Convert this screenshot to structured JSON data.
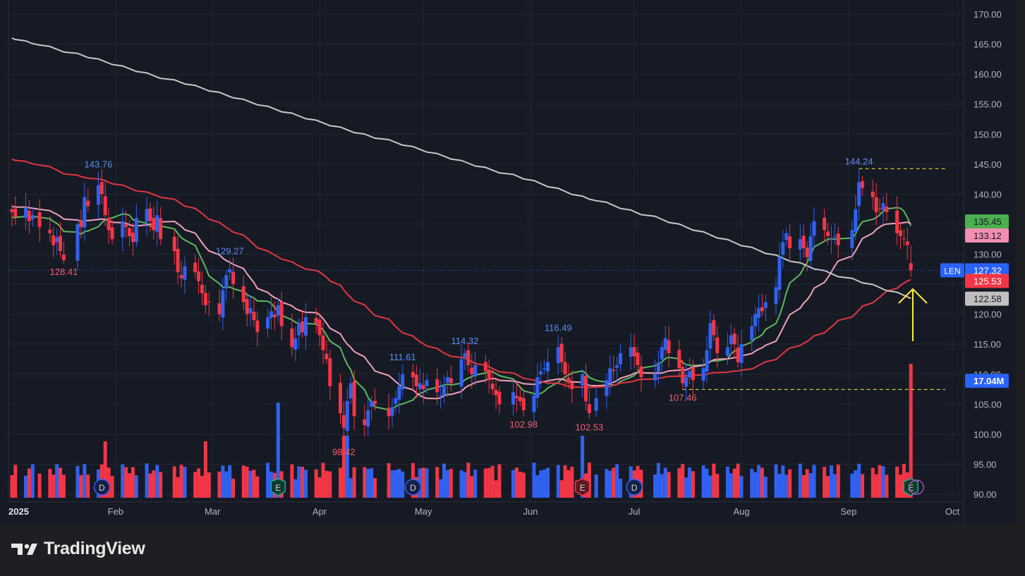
{
  "brand": {
    "name": "TradingView",
    "icon": "tradingview-logo-icon"
  },
  "colors": {
    "background": "#161a25",
    "grid": "#232733",
    "axis_text": "#b2b5be",
    "up": "#3061f0",
    "down": "#f23645",
    "sma_green": "#5cb85c",
    "sma_pink": "#f3a1bb",
    "sma_red": "#e4363f",
    "sma_gray": "#c7c7c7",
    "annotation": "#ffeb3b"
  },
  "chart_data": {
    "type": "candlestick",
    "symbol": "LEN",
    "x_ticks": [
      "2025",
      "Feb",
      "Mar",
      "Apr",
      "May",
      "Jun",
      "Jul",
      "Aug",
      "Sep",
      "Oct"
    ],
    "y_ticks": [
      "170.00",
      "165.00",
      "160.00",
      "155.00",
      "150.00",
      "145.00",
      "140.00",
      "135.00",
      "130.00",
      "125.00",
      "120.00",
      "115.00",
      "110.00",
      "105.00",
      "100.00",
      "95.00",
      "90.00"
    ],
    "ylim": [
      88.5,
      171.5
    ],
    "candles": [
      {
        "date": "2025-01-02",
        "close": 137.0
      },
      {
        "date": "2025-01-03",
        "close": 136.2
      },
      {
        "date": "2025-01-06",
        "close": 137.8
      },
      {
        "date": "2025-01-07",
        "close": 135.5
      },
      {
        "date": "2025-01-08",
        "close": 136.5
      },
      {
        "date": "2025-01-10",
        "close": 134.5
      },
      {
        "date": "2025-01-13",
        "close": 133.5
      },
      {
        "date": "2025-01-14",
        "close": 131.5
      },
      {
        "date": "2025-01-15",
        "close": 132.8
      },
      {
        "date": "2025-01-16",
        "close": 130.5
      },
      {
        "date": "2025-01-17",
        "close": 129.0
      },
      {
        "date": "2025-01-21",
        "close": 135.0
      },
      {
        "date": "2025-01-22",
        "close": 134.5
      },
      {
        "date": "2025-01-23",
        "close": 139.5
      },
      {
        "date": "2025-01-24",
        "close": 138.0
      },
      {
        "date": "2025-01-27",
        "close": 141.5
      },
      {
        "date": "2025-01-28",
        "close": 140.0
      },
      {
        "date": "2025-01-29",
        "close": 136.5
      },
      {
        "date": "2025-01-30",
        "close": 134.0
      },
      {
        "date": "2025-01-31",
        "close": 132.5
      },
      {
        "date": "2025-02-03",
        "close": 135.5
      },
      {
        "date": "2025-02-04",
        "close": 134.5
      },
      {
        "date": "2025-02-05",
        "close": 133.0
      },
      {
        "date": "2025-02-06",
        "close": 132.0
      },
      {
        "date": "2025-02-07",
        "close": 136.0
      },
      {
        "date": "2025-02-10",
        "close": 137.5
      },
      {
        "date": "2025-02-11",
        "close": 135.5
      },
      {
        "date": "2025-02-12",
        "close": 134.0
      },
      {
        "date": "2025-02-13",
        "close": 136.5
      },
      {
        "date": "2025-02-14",
        "close": 132.5
      },
      {
        "date": "2025-02-18",
        "close": 130.5
      },
      {
        "date": "2025-02-19",
        "close": 127.0
      },
      {
        "date": "2025-02-20",
        "close": 126.0
      },
      {
        "date": "2025-02-21",
        "close": 128.0
      },
      {
        "date": "2025-02-24",
        "close": 127.0
      },
      {
        "date": "2025-02-25",
        "close": 125.5
      },
      {
        "date": "2025-02-26",
        "close": 123.5
      },
      {
        "date": "2025-02-27",
        "close": 121.5
      },
      {
        "date": "2025-02-28",
        "close": 122.0
      },
      {
        "date": "2025-03-03",
        "close": 120.0
      },
      {
        "date": "2025-03-04",
        "close": 124.0
      },
      {
        "date": "2025-03-05",
        "close": 126.5
      },
      {
        "date": "2025-03-06",
        "close": 127.5
      },
      {
        "date": "2025-03-07",
        "close": 125.0
      },
      {
        "date": "2025-03-10",
        "close": 122.0
      },
      {
        "date": "2025-03-11",
        "close": 120.0
      },
      {
        "date": "2025-03-12",
        "close": 121.0
      },
      {
        "date": "2025-03-13",
        "close": 119.0
      },
      {
        "date": "2025-03-14",
        "close": 117.0
      },
      {
        "date": "2025-03-17",
        "close": 119.5
      },
      {
        "date": "2025-03-18",
        "close": 120.5
      },
      {
        "date": "2025-03-19",
        "close": 119.5
      },
      {
        "date": "2025-03-20",
        "close": 121.5
      },
      {
        "date": "2025-03-21",
        "close": 118.0
      },
      {
        "date": "2025-03-24",
        "close": 114.5
      },
      {
        "date": "2025-03-25",
        "close": 116.0
      },
      {
        "date": "2025-03-26",
        "close": 118.5
      },
      {
        "date": "2025-03-27",
        "close": 117.0
      },
      {
        "date": "2025-03-28",
        "close": 119.5
      },
      {
        "date": "2025-03-31",
        "close": 118.5
      },
      {
        "date": "2025-04-01",
        "close": 116.5
      },
      {
        "date": "2025-04-02",
        "close": 114.0
      },
      {
        "date": "2025-04-03",
        "close": 112.5
      },
      {
        "date": "2025-04-04",
        "close": 108.0
      },
      {
        "date": "2025-04-07",
        "close": 103.5
      },
      {
        "date": "2025-04-08",
        "close": 101.0
      },
      {
        "date": "2025-04-09",
        "close": 105.5
      },
      {
        "date": "2025-04-10",
        "close": 108.5
      },
      {
        "date": "2025-04-11",
        "close": 103.0
      },
      {
        "date": "2025-04-14",
        "close": 101.5
      },
      {
        "date": "2025-04-15",
        "close": 104.0
      },
      {
        "date": "2025-04-16",
        "close": 105.5
      },
      {
        "date": "2025-04-17",
        "close": 105.0
      },
      {
        "date": "2025-04-21",
        "close": 103.0
      },
      {
        "date": "2025-04-22",
        "close": 104.5
      },
      {
        "date": "2025-04-23",
        "close": 106.0
      },
      {
        "date": "2025-04-24",
        "close": 108.0
      },
      {
        "date": "2025-04-25",
        "close": 110.0
      },
      {
        "date": "2025-04-28",
        "close": 109.5
      },
      {
        "date": "2025-04-29",
        "close": 108.0
      },
      {
        "date": "2025-04-30",
        "close": 108.5
      },
      {
        "date": "2025-05-01",
        "close": 107.5
      },
      {
        "date": "2025-05-02",
        "close": 109.0
      },
      {
        "date": "2025-05-05",
        "close": 107.0
      },
      {
        "date": "2025-05-06",
        "close": 106.5
      },
      {
        "date": "2025-05-07",
        "close": 108.0
      },
      {
        "date": "2025-05-08",
        "close": 109.5
      },
      {
        "date": "2025-05-09",
        "close": 108.5
      },
      {
        "date": "2025-05-12",
        "close": 112.5
      },
      {
        "date": "2025-05-13",
        "close": 113.5
      },
      {
        "date": "2025-05-14",
        "close": 111.5
      },
      {
        "date": "2025-05-15",
        "close": 110.0
      },
      {
        "date": "2025-05-16",
        "close": 111.5
      },
      {
        "date": "2025-05-19",
        "close": 110.5
      },
      {
        "date": "2025-05-20",
        "close": 109.0
      },
      {
        "date": "2025-05-21",
        "close": 107.5
      },
      {
        "date": "2025-05-22",
        "close": 106.5
      },
      {
        "date": "2025-05-23",
        "close": 105.0
      },
      {
        "date": "2025-05-27",
        "close": 107.0
      },
      {
        "date": "2025-05-28",
        "close": 106.0
      },
      {
        "date": "2025-05-29",
        "close": 105.5
      },
      {
        "date": "2025-05-30",
        "close": 104.0
      },
      {
        "date": "2025-06-02",
        "close": 106.5
      },
      {
        "date": "2025-06-03",
        "close": 109.5
      },
      {
        "date": "2025-06-04",
        "close": 110.5
      },
      {
        "date": "2025-06-05",
        "close": 111.0
      },
      {
        "date": "2025-06-06",
        "close": 112.0
      },
      {
        "date": "2025-06-09",
        "close": 114.5
      },
      {
        "date": "2025-06-10",
        "close": 112.0
      },
      {
        "date": "2025-06-11",
        "close": 110.0
      },
      {
        "date": "2025-06-12",
        "close": 108.5
      },
      {
        "date": "2025-06-13",
        "close": 107.5
      },
      {
        "date": "2025-06-16",
        "close": 110.0
      },
      {
        "date": "2025-06-17",
        "close": 105.5
      },
      {
        "date": "2025-06-18",
        "close": 103.5
      },
      {
        "date": "2025-06-20",
        "close": 106.0
      },
      {
        "date": "2025-06-23",
        "close": 109.0
      },
      {
        "date": "2025-06-24",
        "close": 111.0
      },
      {
        "date": "2025-06-25",
        "close": 110.5
      },
      {
        "date": "2025-06-26",
        "close": 111.5
      },
      {
        "date": "2025-06-27",
        "close": 113.5
      },
      {
        "date": "2025-06-30",
        "close": 114.5
      },
      {
        "date": "2025-07-01",
        "close": 113.0
      },
      {
        "date": "2025-07-02",
        "close": 111.5
      },
      {
        "date": "2025-07-03",
        "close": 109.5
      },
      {
        "date": "2025-07-07",
        "close": 110.0
      },
      {
        "date": "2025-07-08",
        "close": 112.0
      },
      {
        "date": "2025-07-09",
        "close": 114.5
      },
      {
        "date": "2025-07-10",
        "close": 116.0
      },
      {
        "date": "2025-07-11",
        "close": 113.5
      },
      {
        "date": "2025-07-14",
        "close": 111.0
      },
      {
        "date": "2025-07-15",
        "close": 108.5
      },
      {
        "date": "2025-07-16",
        "close": 109.5
      },
      {
        "date": "2025-07-17",
        "close": 110.5
      },
      {
        "date": "2025-07-18",
        "close": 109.0
      },
      {
        "date": "2025-07-21",
        "close": 111.0
      },
      {
        "date": "2025-07-22",
        "close": 114.0
      },
      {
        "date": "2025-07-23",
        "close": 118.5
      },
      {
        "date": "2025-07-24",
        "close": 116.5
      },
      {
        "date": "2025-07-25",
        "close": 113.5
      },
      {
        "date": "2025-07-28",
        "close": 114.5
      },
      {
        "date": "2025-07-29",
        "close": 116.5
      },
      {
        "date": "2025-07-30",
        "close": 115.0
      },
      {
        "date": "2025-07-31",
        "close": 112.0
      },
      {
        "date": "2025-08-01",
        "close": 115.0
      },
      {
        "date": "2025-08-04",
        "close": 118.0
      },
      {
        "date": "2025-08-05",
        "close": 120.0
      },
      {
        "date": "2025-08-06",
        "close": 121.0
      },
      {
        "date": "2025-08-07",
        "close": 120.5
      },
      {
        "date": "2025-08-08",
        "close": 122.0
      },
      {
        "date": "2025-08-11",
        "close": 124.5
      },
      {
        "date": "2025-08-12",
        "close": 129.5
      },
      {
        "date": "2025-08-13",
        "close": 132.0
      },
      {
        "date": "2025-08-14",
        "close": 133.5
      },
      {
        "date": "2025-08-15",
        "close": 131.0
      },
      {
        "date": "2025-08-18",
        "close": 132.5
      },
      {
        "date": "2025-08-19",
        "close": 131.0
      },
      {
        "date": "2025-08-20",
        "close": 129.5
      },
      {
        "date": "2025-08-21",
        "close": 133.0
      },
      {
        "date": "2025-08-22",
        "close": 135.5
      },
      {
        "date": "2025-08-25",
        "close": 134.0
      },
      {
        "date": "2025-08-26",
        "close": 133.0
      },
      {
        "date": "2025-08-27",
        "close": 132.5
      },
      {
        "date": "2025-08-28",
        "close": 133.0
      },
      {
        "date": "2025-08-29",
        "close": 131.5
      },
      {
        "date": "2025-09-02",
        "close": 134.0
      },
      {
        "date": "2025-09-03",
        "close": 137.5
      },
      {
        "date": "2025-09-04",
        "close": 142.0
      },
      {
        "date": "2025-09-05",
        "close": 141.0
      },
      {
        "date": "2025-09-08",
        "close": 139.5
      },
      {
        "date": "2025-09-09",
        "close": 137.0
      },
      {
        "date": "2025-09-10",
        "close": 137.5
      },
      {
        "date": "2025-09-11",
        "close": 138.5
      },
      {
        "date": "2025-09-12",
        "close": 137.0
      },
      {
        "date": "2025-09-15",
        "close": 133.5
      },
      {
        "date": "2025-09-16",
        "close": 133.0
      },
      {
        "date": "2025-09-17",
        "close": 132.5
      },
      {
        "date": "2025-09-18",
        "close": 131.5
      },
      {
        "date": "2025-09-19",
        "close": 127.32
      }
    ],
    "price_labels": [
      {
        "text": "143.76",
        "type": "high",
        "date": "2025-01-27",
        "price": 143.76
      },
      {
        "text": "128.41",
        "type": "low",
        "date": "2025-01-17",
        "price": 128.41
      },
      {
        "text": "129.27",
        "type": "high",
        "date": "2025-03-06",
        "price": 129.27
      },
      {
        "text": "98.42",
        "type": "low",
        "date": "2025-04-08",
        "price": 98.42
      },
      {
        "text": "111.61",
        "type": "high",
        "date": "2025-04-25",
        "price": 111.61
      },
      {
        "text": "114.32",
        "type": "high",
        "date": "2025-05-13",
        "price": 114.32
      },
      {
        "text": "102.98",
        "type": "low",
        "date": "2025-05-30",
        "price": 102.98
      },
      {
        "text": "116.49",
        "type": "high",
        "date": "2025-06-09",
        "price": 116.49
      },
      {
        "text": "102.53",
        "type": "low",
        "date": "2025-06-18",
        "price": 102.53
      },
      {
        "text": "107.46",
        "type": "low",
        "date": "2025-07-15",
        "price": 107.46
      },
      {
        "text": "144.24",
        "type": "high",
        "date": "2025-09-04",
        "price": 144.24
      }
    ],
    "axis_labels": [
      {
        "text": "135.45",
        "color": "#4caf50",
        "price": 135.45
      },
      {
        "text": "133.12",
        "color": "#f48fb1",
        "price": 133.12
      },
      {
        "text": "127.32",
        "color": "#2962ff",
        "price": 127.32,
        "symbol": "LEN"
      },
      {
        "text": "125.53",
        "color": "#f23645",
        "price": 125.53
      },
      {
        "text": "122.58",
        "color": "#c0c0c0",
        "price": 122.58
      },
      {
        "text": "17.04M",
        "color": "#2962ff",
        "price": 108.9,
        "kind": "volume"
      }
    ],
    "horizontal_lines": [
      144.24,
      107.46
    ],
    "last_price": 127.32,
    "events": [
      {
        "letter": "D",
        "date": "2025-01-28"
      },
      {
        "letter": "E",
        "date": "2025-03-20"
      },
      {
        "letter": "D",
        "date": "2025-04-28"
      },
      {
        "letter": "E",
        "date": "2025-06-16"
      },
      {
        "letter": "D",
        "date": "2025-07-01"
      },
      {
        "letter": "E",
        "date": "2025-09-19"
      }
    ],
    "last_volume": "17.04M",
    "moving_averages": [
      {
        "color_key": "sma_green",
        "label": "135.45"
      },
      {
        "color_key": "sma_pink",
        "label": "133.12"
      },
      {
        "color_key": "sma_red",
        "label": "125.53"
      },
      {
        "color_key": "sma_gray",
        "label": "122.58"
      }
    ]
  }
}
